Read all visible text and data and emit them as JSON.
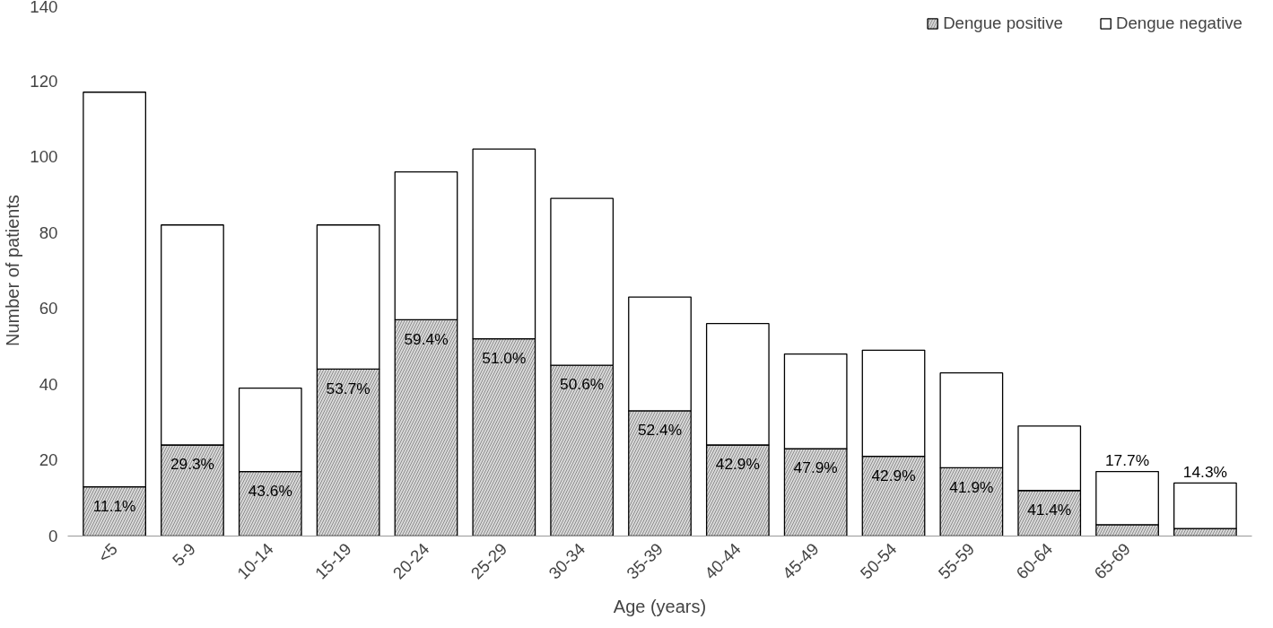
{
  "chart_data": {
    "type": "bar",
    "stacked": true,
    "xlabel": "Age (years)",
    "ylabel": "Number of patients",
    "categories": [
      "<5",
      "5-9",
      "10-14",
      "15-19",
      "20-24",
      "25-29",
      "30-34",
      "35-39",
      "40-44",
      "45-49",
      "50-54",
      "55-59",
      "60-64",
      "65-69",
      null
    ],
    "series": [
      {
        "name": "Dengue positive",
        "color": "#d9d9d9",
        "values": [
          13,
          24,
          17,
          44,
          57,
          52,
          45,
          33,
          24,
          23,
          21,
          18,
          12,
          3,
          2
        ]
      },
      {
        "name": "Dengue negative",
        "color": "#ffffff",
        "values": [
          104,
          58,
          22,
          38,
          39,
          50,
          44,
          30,
          32,
          25,
          28,
          25,
          17,
          14,
          12
        ]
      }
    ],
    "annotations": [
      "11.1%",
      "29.3%",
      "43.6%",
      "53.7%",
      "59.4%",
      "51.0%",
      "50.6%",
      "52.4%",
      "42.9%",
      "47.9%",
      "42.9%",
      "41.9%",
      "41.4%",
      "17.7%",
      "14.3%"
    ],
    "ylim": [
      0,
      140
    ],
    "yticks": [
      0,
      20,
      40,
      60,
      80,
      100,
      120,
      140
    ],
    "grid": false,
    "legend": "top right"
  }
}
